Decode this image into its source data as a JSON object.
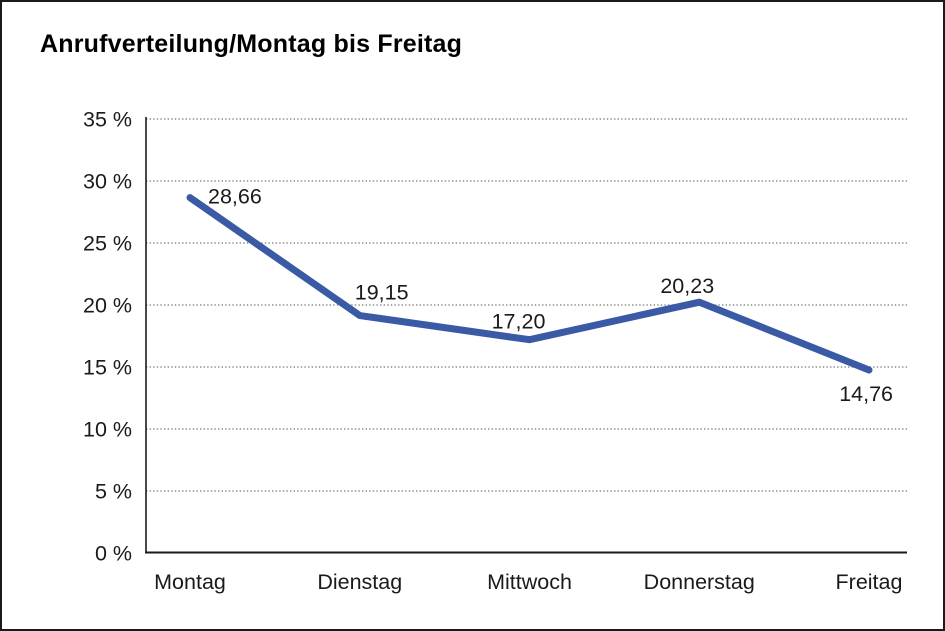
{
  "chart": {
    "background": "#ffffff",
    "frame_border_color": "#1a1a1a"
  },
  "chart_data": {
    "type": "line",
    "title": "Anrufverteilung/Montag bis Freitag",
    "categories": [
      "Montag",
      "Dienstag",
      "Mittwoch",
      "Donnerstag",
      "Freitag"
    ],
    "values": [
      28.66,
      19.15,
      17.2,
      20.23,
      14.76
    ],
    "value_labels": [
      "28,66",
      "19,15",
      "17,20",
      "20,23",
      "14,76"
    ],
    "xlabel": "",
    "ylabel": "",
    "ylim": [
      0,
      35
    ],
    "y_ticks": [
      0,
      5,
      10,
      15,
      20,
      25,
      30,
      35
    ],
    "y_tick_labels": [
      "0 %",
      "5 %",
      "10 %",
      "15 %",
      "20 %",
      "25 %",
      "30 %",
      "35 %"
    ],
    "grid": "horizontal-dotted",
    "legend": "none",
    "line_color": "#3a5aa6",
    "grid_color": "#8c8c8c",
    "axis_color": "#1a1a1a",
    "text_color": "#1a1a1a"
  }
}
